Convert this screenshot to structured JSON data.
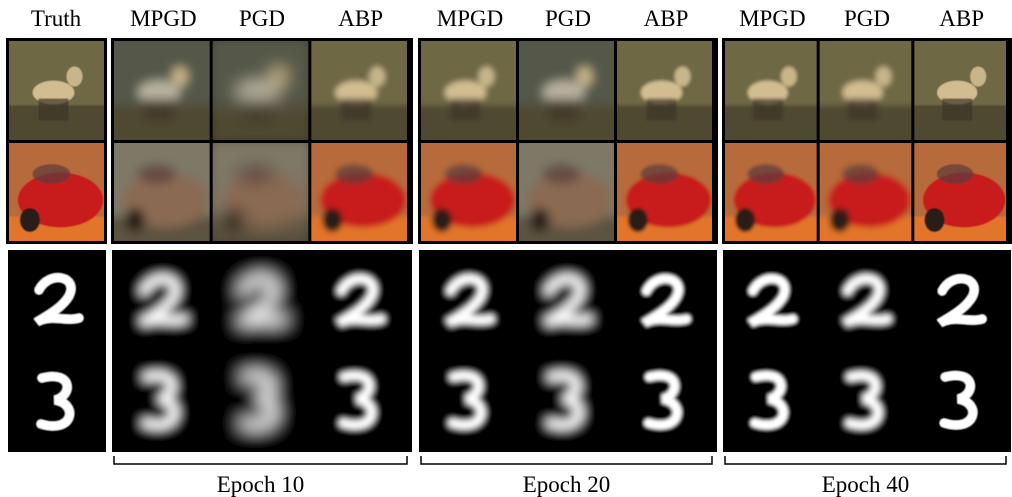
{
  "truth": "Truth",
  "groups": [
    {
      "methods": [
        "MPGD",
        "PGD",
        "ABP"
      ],
      "caption": "Epoch 10"
    },
    {
      "methods": [
        "MPGD",
        "PGD",
        "ABP"
      ],
      "caption": "Epoch 20"
    },
    {
      "methods": [
        "MPGD",
        "PGD",
        "ABP"
      ],
      "caption": "Epoch 40"
    }
  ]
}
